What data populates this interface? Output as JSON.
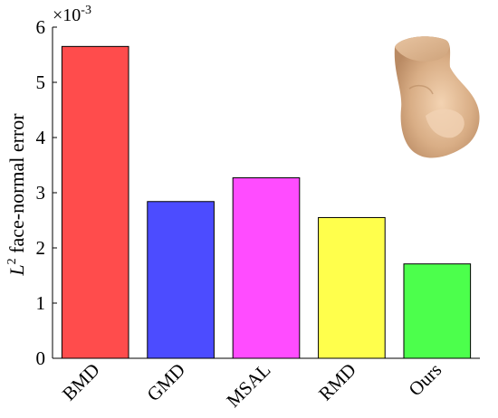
{
  "chart_data": {
    "type": "bar",
    "categories": [
      "BMD",
      "GMD",
      "MSAL",
      "RMD",
      "Ours"
    ],
    "values": [
      5.65,
      2.84,
      3.27,
      2.55,
      1.71
    ],
    "colors": [
      "#ff4c4c",
      "#4c4cff",
      "#ff4cff",
      "#ffff4c",
      "#4cff4c"
    ],
    "ylabel_base": "L",
    "ylabel_sup": "2",
    "ylabel_rest": " face-normal error",
    "ylim": [
      0,
      6
    ],
    "yticks": [
      "0",
      "1",
      "2",
      "3",
      "4",
      "5",
      "6"
    ],
    "y_multiplier_base": "×10",
    "y_multiplier_exp": "-3",
    "grid": false,
    "inset_image": "nose-model-render"
  }
}
